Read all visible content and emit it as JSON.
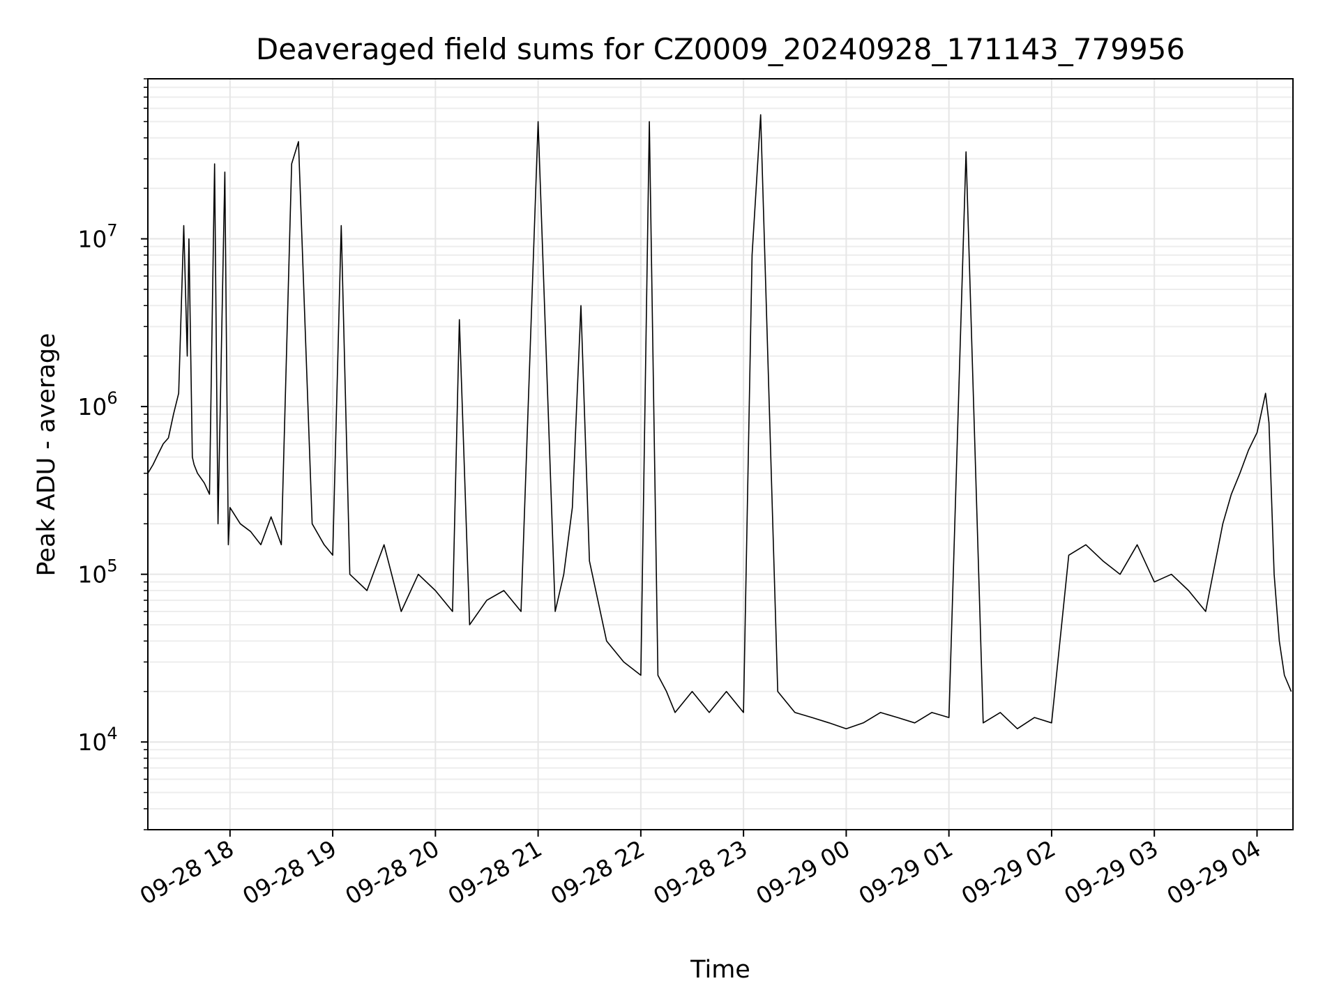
{
  "chart_data": {
    "type": "line",
    "title": "Deaveraged field sums for CZ0009_20240928_171143_779956",
    "xlabel": "Time",
    "ylabel": "Peak ADU - average",
    "yscale": "log",
    "xlim": [
      "2024-09-28 17:12",
      "2024-09-29 04:21"
    ],
    "ylim": [
      3000,
      90000000
    ],
    "grid": true,
    "line_color": "#000000",
    "x_ticks": [
      "09-28 18",
      "09-28 19",
      "09-28 20",
      "09-28 21",
      "09-28 22",
      "09-28 23",
      "09-29 00",
      "09-29 01",
      "09-29 02",
      "09-29 03",
      "09-29 04"
    ],
    "y_ticks": [
      {
        "value": 10000,
        "base": "10",
        "exp": "4"
      },
      {
        "value": 100000,
        "base": "10",
        "exp": "5"
      },
      {
        "value": 1000000,
        "base": "10",
        "exp": "6"
      },
      {
        "value": 10000000,
        "base": "10",
        "exp": "7"
      }
    ],
    "series": [
      {
        "x": [
          "2024-09-28 17:12",
          "2024-09-28 17:15",
          "2024-09-28 17:18",
          "2024-09-28 17:21",
          "2024-09-28 17:24",
          "2024-09-28 17:27",
          "2024-09-28 17:30",
          "2024-09-28 17:33",
          "2024-09-28 17:35",
          "2024-09-28 17:36",
          "2024-09-28 17:38",
          "2024-09-28 17:39",
          "2024-09-28 17:41",
          "2024-09-28 17:45",
          "2024-09-28 17:48",
          "2024-09-28 17:51",
          "2024-09-28 17:53",
          "2024-09-28 17:57",
          "2024-09-28 17:59",
          "2024-09-28 18:00",
          "2024-09-28 18:06",
          "2024-09-28 18:12",
          "2024-09-28 18:18",
          "2024-09-28 18:24",
          "2024-09-28 18:30",
          "2024-09-28 18:36",
          "2024-09-28 18:40",
          "2024-09-28 18:48",
          "2024-09-28 18:55",
          "2024-09-28 19:00",
          "2024-09-28 19:05",
          "2024-09-28 19:10",
          "2024-09-28 19:20",
          "2024-09-28 19:30",
          "2024-09-28 19:40",
          "2024-09-28 19:50",
          "2024-09-28 20:00",
          "2024-09-28 20:10",
          "2024-09-28 20:14",
          "2024-09-28 20:20",
          "2024-09-28 20:30",
          "2024-09-28 20:40",
          "2024-09-28 20:50",
          "2024-09-28 21:00",
          "2024-09-28 21:10",
          "2024-09-28 21:15",
          "2024-09-28 21:20",
          "2024-09-28 21:25",
          "2024-09-28 21:30",
          "2024-09-28 21:40",
          "2024-09-28 21:50",
          "2024-09-28 22:00",
          "2024-09-28 22:05",
          "2024-09-28 22:10",
          "2024-09-28 22:15",
          "2024-09-28 22:20",
          "2024-09-28 22:30",
          "2024-09-28 22:40",
          "2024-09-28 22:50",
          "2024-09-28 23:00",
          "2024-09-28 23:05",
          "2024-09-28 23:10",
          "2024-09-28 23:20",
          "2024-09-28 23:30",
          "2024-09-28 23:40",
          "2024-09-28 23:50",
          "2024-09-29 00:00",
          "2024-09-29 00:10",
          "2024-09-29 00:20",
          "2024-09-29 00:30",
          "2024-09-29 00:40",
          "2024-09-29 00:50",
          "2024-09-29 01:00",
          "2024-09-29 01:10",
          "2024-09-29 01:20",
          "2024-09-29 01:30",
          "2024-09-29 01:40",
          "2024-09-29 01:50",
          "2024-09-29 02:00",
          "2024-09-29 02:10",
          "2024-09-29 02:20",
          "2024-09-29 02:30",
          "2024-09-29 02:40",
          "2024-09-29 02:50",
          "2024-09-29 03:00",
          "2024-09-29 03:10",
          "2024-09-29 03:20",
          "2024-09-29 03:30",
          "2024-09-29 03:40",
          "2024-09-29 03:45",
          "2024-09-29 03:50",
          "2024-09-29 03:55",
          "2024-09-29 04:00",
          "2024-09-29 04:05",
          "2024-09-29 04:07",
          "2024-09-29 04:10",
          "2024-09-29 04:13",
          "2024-09-29 04:16",
          "2024-09-29 04:20"
        ],
        "y": [
          400000,
          450000,
          520000,
          600000,
          650000,
          900000,
          1200000,
          12000000,
          2000000,
          10000000,
          500000,
          450000,
          400000,
          350000,
          300000,
          28000000,
          200000,
          25000000,
          150000,
          250000,
          200000,
          180000,
          150000,
          220000,
          150000,
          28000000,
          38000000,
          200000,
          150000,
          130000,
          12000000,
          100000,
          80000,
          150000,
          60000,
          100000,
          80000,
          60000,
          3300000,
          50000,
          70000,
          80000,
          60000,
          50000000,
          60000,
          100000,
          250000,
          4000000,
          120000,
          40000,
          30000,
          25000,
          50000000,
          25000,
          20000,
          15000,
          20000,
          15000,
          20000,
          15000,
          8000000,
          55000000,
          20000,
          15000,
          14000,
          13000,
          12000,
          13000,
          15000,
          14000,
          13000,
          15000,
          14000,
          33000000,
          13000,
          15000,
          12000,
          14000,
          13000,
          130000,
          150000,
          120000,
          100000,
          150000,
          90000,
          100000,
          80000,
          60000,
          200000,
          300000,
          400000,
          550000,
          700000,
          1200000,
          800000,
          100000,
          40000,
          25000,
          20000
        ]
      }
    ]
  }
}
